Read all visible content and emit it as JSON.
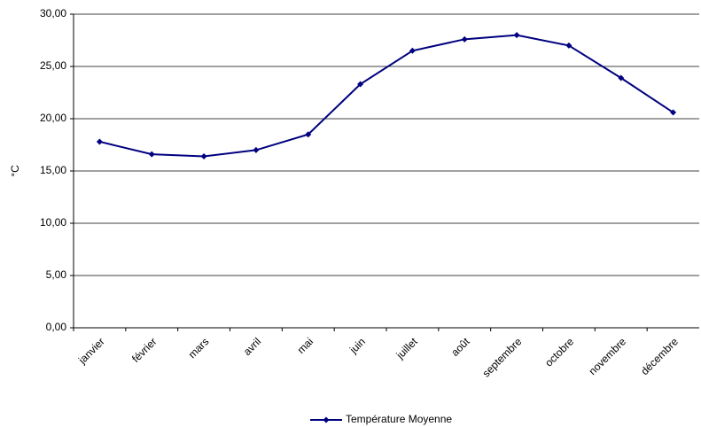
{
  "chart_data": {
    "type": "line",
    "y_label": "°C",
    "categories": [
      "janvier",
      "février",
      "mars",
      "avril",
      "mai",
      "juin",
      "juillet",
      "août",
      "septembre",
      "octobre",
      "novembre",
      "décembre"
    ],
    "series": [
      {
        "name": "Température Moyenne",
        "color": "#000080",
        "values": [
          17.8,
          16.6,
          16.4,
          17.0,
          18.5,
          23.3,
          26.5,
          27.6,
          28.0,
          27.0,
          23.9,
          20.6
        ]
      }
    ],
    "ylim": [
      0,
      30
    ],
    "yticks": [
      {
        "value": 0,
        "label": "0,00"
      },
      {
        "value": 5,
        "label": "5,00"
      },
      {
        "value": 10,
        "label": "10,00"
      },
      {
        "value": 15,
        "label": "15,00"
      },
      {
        "value": 20,
        "label": "20,00"
      },
      {
        "value": 25,
        "label": "25,00"
      },
      {
        "value": 30,
        "label": "30,00"
      }
    ],
    "grid": true,
    "legend": "bottom"
  }
}
